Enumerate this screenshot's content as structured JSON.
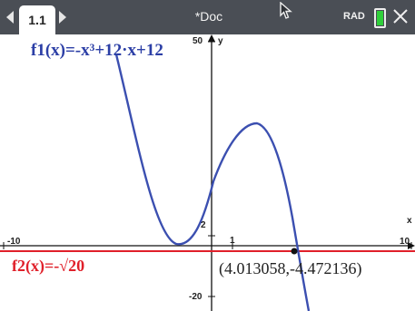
{
  "toolbar": {
    "tab_label": "1.1",
    "doc_title": "*Doc",
    "angle_mode": "RAD"
  },
  "graph": {
    "f1_label": "f1(x)=-x³+12·x+12",
    "f2_label": "f2(x)=-√20",
    "point_label": "(4.013058,-4.472136)",
    "axis_labels": {
      "x_min": "-10",
      "x_max": "10",
      "x_unit": "1",
      "y_max": "50",
      "y_min": "-20",
      "y_unit": "2",
      "x_name": "x",
      "y_name": "y"
    }
  },
  "colors": {
    "f1": "#3b4fb0",
    "f2": "#e0202a",
    "titlebar": "#4a4e55"
  },
  "icons": [
    "chevron-left-icon",
    "chevron-right-icon",
    "mouse-cursor-icon",
    "battery-icon",
    "close-icon"
  ]
}
